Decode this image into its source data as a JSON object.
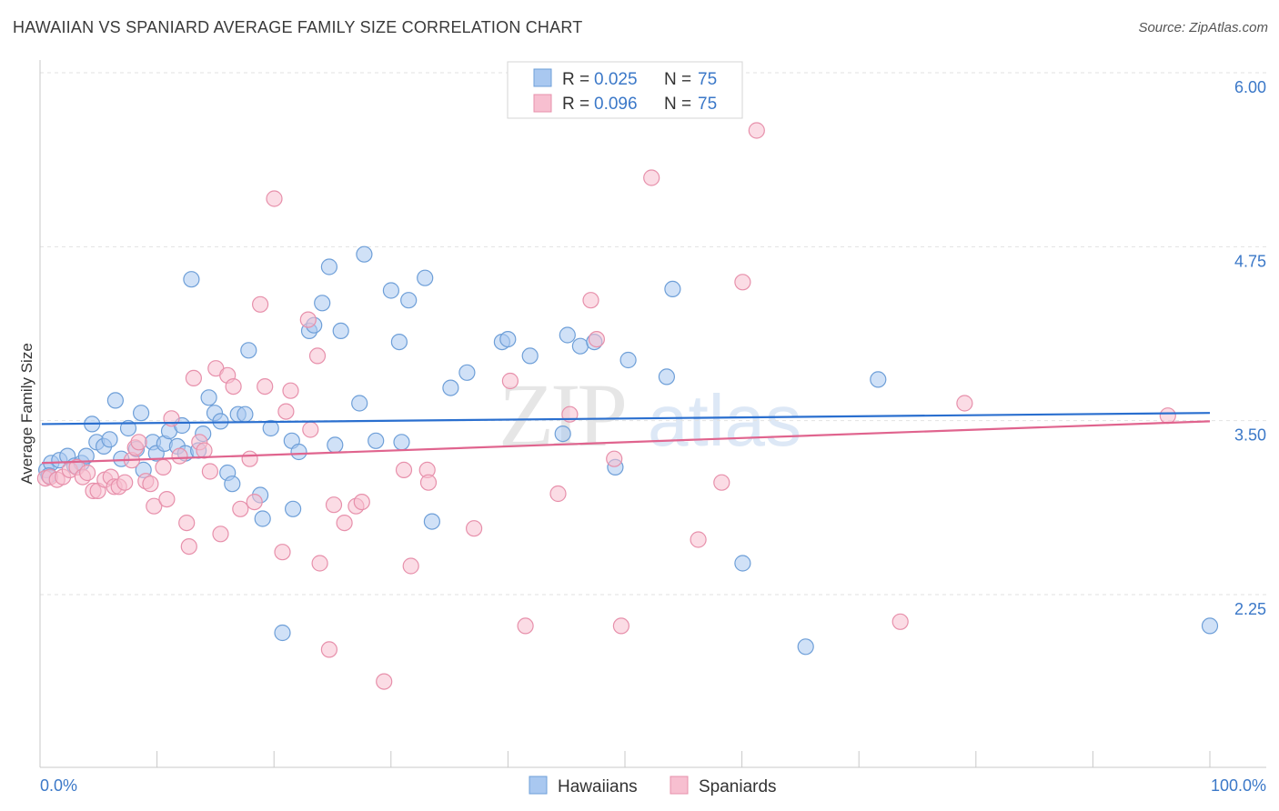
{
  "header": {
    "title": "HAWAIIAN VS SPANIARD AVERAGE FAMILY SIZE CORRELATION CHART",
    "source": "Source: ZipAtlas.com"
  },
  "watermark": {
    "zip": "ZIP",
    "atlas": "atlas"
  },
  "legend_top": [
    {
      "r_label": "R = ",
      "r_value": "0.025",
      "n_label": "N = ",
      "n_value": "75",
      "color": "#a9c8f0",
      "stroke": "#6e9fd8"
    },
    {
      "r_label": "R = ",
      "r_value": "0.096",
      "n_label": "N = ",
      "n_value": "75",
      "color": "#f7bfd0",
      "stroke": "#e790ab"
    }
  ],
  "legend_bottom": [
    {
      "label": "Hawaiians",
      "color": "#a9c8f0",
      "stroke": "#6e9fd8"
    },
    {
      "label": "Spaniards",
      "color": "#f7bfd0",
      "stroke": "#e790ab"
    }
  ],
  "chart_data": {
    "type": "scatter",
    "title": "HAWAIIAN VS SPANIARD AVERAGE FAMILY SIZE CORRELATION CHART",
    "xlabel": "",
    "ylabel": "Average Family Size",
    "x_tick_labels": [
      "0.0%",
      "100.0%"
    ],
    "y_tick_labels": [
      "6.00",
      "4.75",
      "3.50",
      "2.25"
    ],
    "xlim": [
      0,
      100
    ],
    "ylim": [
      1.0,
      6.1
    ],
    "y_ticks": [
      6.0,
      4.75,
      3.5,
      2.25
    ],
    "grid": true,
    "legend_position": "top-center",
    "series": [
      {
        "name": "Hawaiians",
        "color": "#a9c8f0",
        "stroke": "#6e9fd8",
        "line_color": "#2a6fcf",
        "trend": {
          "x": [
            0,
            100
          ],
          "y": [
            3.58,
            3.66
          ]
        },
        "points": [
          [
            0.4,
            3.25
          ],
          [
            0.8,
            3.3
          ],
          [
            1.5,
            3.32
          ],
          [
            2.2,
            3.35
          ],
          [
            2.8,
            3.28
          ],
          [
            3.4,
            3.3
          ],
          [
            3.8,
            3.35
          ],
          [
            4.3,
            3.58
          ],
          [
            4.7,
            3.45
          ],
          [
            5.3,
            3.42
          ],
          [
            5.8,
            3.47
          ],
          [
            6.3,
            3.75
          ],
          [
            6.8,
            3.33
          ],
          [
            7.4,
            3.55
          ],
          [
            8.1,
            3.4
          ],
          [
            8.5,
            3.66
          ],
          [
            8.7,
            3.25
          ],
          [
            9.5,
            3.45
          ],
          [
            9.8,
            3.37
          ],
          [
            10.5,
            3.44
          ],
          [
            10.9,
            3.53
          ],
          [
            11.6,
            3.42
          ],
          [
            12.0,
            3.57
          ],
          [
            12.3,
            3.37
          ],
          [
            12.8,
            4.62
          ],
          [
            13.4,
            3.39
          ],
          [
            13.8,
            3.51
          ],
          [
            14.3,
            3.77
          ],
          [
            14.8,
            3.66
          ],
          [
            15.3,
            3.6
          ],
          [
            15.9,
            3.23
          ],
          [
            16.3,
            3.15
          ],
          [
            16.8,
            3.65
          ],
          [
            17.4,
            3.65
          ],
          [
            17.7,
            4.11
          ],
          [
            18.7,
            3.07
          ],
          [
            18.9,
            2.9
          ],
          [
            19.6,
            3.55
          ],
          [
            20.6,
            2.08
          ],
          [
            21.4,
            3.46
          ],
          [
            21.5,
            2.97
          ],
          [
            22.0,
            3.38
          ],
          [
            22.9,
            4.25
          ],
          [
            23.3,
            4.29
          ],
          [
            24.0,
            4.45
          ],
          [
            24.6,
            4.71
          ],
          [
            25.1,
            3.43
          ],
          [
            25.6,
            4.25
          ],
          [
            27.2,
            3.73
          ],
          [
            27.6,
            4.8
          ],
          [
            28.6,
            3.46
          ],
          [
            29.9,
            4.54
          ],
          [
            30.6,
            4.17
          ],
          [
            30.8,
            3.45
          ],
          [
            31.4,
            4.47
          ],
          [
            32.8,
            4.63
          ],
          [
            33.4,
            2.88
          ],
          [
            35.0,
            3.84
          ],
          [
            36.4,
            3.95
          ],
          [
            39.4,
            4.17
          ],
          [
            39.9,
            4.19
          ],
          [
            41.8,
            4.07
          ],
          [
            44.6,
            3.51
          ],
          [
            45.0,
            4.22
          ],
          [
            46.1,
            4.14
          ],
          [
            47.3,
            4.17
          ],
          [
            49.1,
            3.27
          ],
          [
            50.2,
            4.04
          ],
          [
            53.5,
            3.92
          ],
          [
            54.0,
            4.55
          ],
          [
            60.0,
            2.58
          ],
          [
            65.4,
            1.98
          ],
          [
            71.6,
            3.9
          ],
          [
            100.0,
            2.13
          ],
          [
            0.6,
            3.21
          ]
        ]
      },
      {
        "name": "Spaniards",
        "color": "#f7bfd0",
        "stroke": "#e790ab",
        "line_color": "#e0648e",
        "trend": {
          "x": [
            0,
            100
          ],
          "y": [
            3.3,
            3.6
          ]
        },
        "points": [
          [
            0.3,
            3.19
          ],
          [
            0.7,
            3.2
          ],
          [
            1.3,
            3.18
          ],
          [
            1.8,
            3.2
          ],
          [
            2.4,
            3.25
          ],
          [
            3.0,
            3.27
          ],
          [
            3.5,
            3.2
          ],
          [
            3.9,
            3.23
          ],
          [
            4.4,
            3.1
          ],
          [
            4.8,
            3.1
          ],
          [
            5.4,
            3.18
          ],
          [
            5.9,
            3.2
          ],
          [
            6.2,
            3.13
          ],
          [
            6.6,
            3.13
          ],
          [
            7.1,
            3.16
          ],
          [
            7.7,
            3.32
          ],
          [
            8.0,
            3.41
          ],
          [
            8.3,
            3.45
          ],
          [
            8.9,
            3.17
          ],
          [
            9.3,
            3.15
          ],
          [
            9.6,
            2.99
          ],
          [
            10.4,
            3.27
          ],
          [
            10.7,
            3.04
          ],
          [
            11.1,
            3.62
          ],
          [
            11.8,
            3.35
          ],
          [
            12.4,
            2.87
          ],
          [
            12.6,
            2.7
          ],
          [
            13.0,
            3.91
          ],
          [
            13.5,
            3.45
          ],
          [
            13.9,
            3.39
          ],
          [
            14.4,
            3.24
          ],
          [
            14.9,
            3.98
          ],
          [
            15.3,
            2.79
          ],
          [
            15.9,
            3.93
          ],
          [
            16.4,
            3.85
          ],
          [
            17.0,
            2.97
          ],
          [
            17.8,
            3.33
          ],
          [
            18.2,
            3.02
          ],
          [
            18.7,
            4.44
          ],
          [
            19.1,
            3.85
          ],
          [
            19.9,
            5.2
          ],
          [
            20.6,
            2.66
          ],
          [
            20.9,
            3.67
          ],
          [
            21.3,
            3.82
          ],
          [
            22.8,
            4.33
          ],
          [
            23.0,
            3.54
          ],
          [
            23.6,
            4.07
          ],
          [
            23.8,
            2.58
          ],
          [
            24.6,
            1.96
          ],
          [
            25.0,
            3.0
          ],
          [
            25.9,
            2.87
          ],
          [
            26.9,
            2.99
          ],
          [
            27.4,
            3.02
          ],
          [
            29.3,
            1.73
          ],
          [
            31.0,
            3.25
          ],
          [
            31.6,
            2.56
          ],
          [
            33.0,
            3.25
          ],
          [
            33.1,
            3.16
          ],
          [
            37.0,
            2.83
          ],
          [
            40.1,
            3.89
          ],
          [
            41.4,
            2.13
          ],
          [
            44.2,
            3.08
          ],
          [
            45.2,
            3.65
          ],
          [
            47.0,
            4.47
          ],
          [
            47.5,
            4.19
          ],
          [
            49.0,
            3.33
          ],
          [
            49.6,
            2.13
          ],
          [
            52.2,
            5.35
          ],
          [
            56.2,
            2.75
          ],
          [
            58.2,
            3.16
          ],
          [
            60.0,
            4.6
          ],
          [
            61.2,
            5.69
          ],
          [
            73.5,
            2.16
          ],
          [
            79.0,
            3.73
          ],
          [
            96.4,
            3.64
          ]
        ]
      }
    ]
  }
}
